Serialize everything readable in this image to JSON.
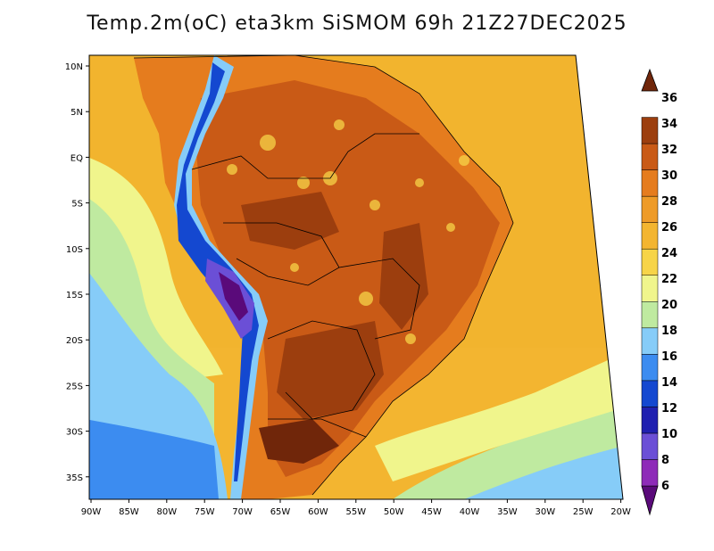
{
  "title": "Temp.2m(oC) eta3km SiSMOM 69h 21Z27DEC2025",
  "map": {
    "lat_labels": [
      "10N",
      "5N",
      "EQ",
      "5S",
      "10S",
      "15S",
      "20S",
      "25S",
      "30S",
      "35S"
    ],
    "lon_labels": [
      "90W",
      "85W",
      "80W",
      "75W",
      "70W",
      "65W",
      "60W",
      "55W",
      "50W",
      "45W",
      "40W",
      "35W",
      "30W",
      "25W",
      "20W"
    ]
  },
  "colorbar": {
    "ticks": [
      "6",
      "8",
      "10",
      "12",
      "14",
      "16",
      "18",
      "20",
      "22",
      "24",
      "26",
      "28",
      "30",
      "32",
      "34",
      "36"
    ],
    "colors": [
      "#5a0a7a",
      "#8e2bb8",
      "#6b4fd6",
      "#2020b0",
      "#1448d0",
      "#3c8cf0",
      "#86ccf8",
      "#bfeaa0",
      "#f0f58c",
      "#f7d448",
      "#f3b530",
      "#ee9b28",
      "#e57c1e",
      "#c95a16",
      "#9c3e0e",
      "#70260a"
    ]
  }
}
